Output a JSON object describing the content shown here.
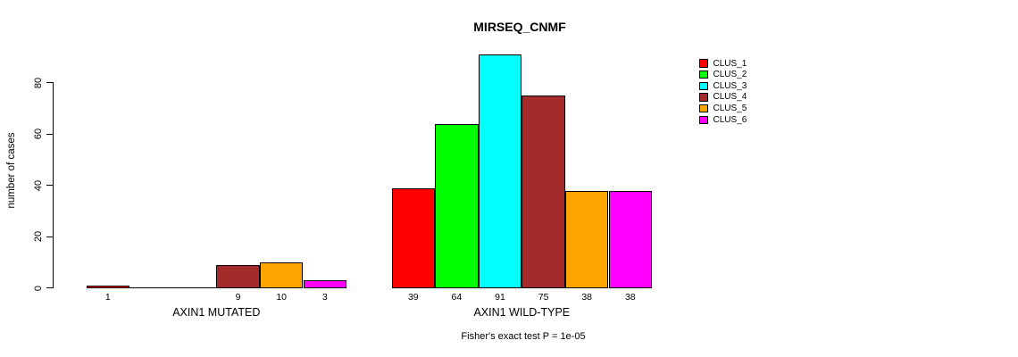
{
  "title": "MIRSEQ_CNMF",
  "y_axis": {
    "label": "number of cases",
    "ticks": [
      0,
      20,
      40,
      60,
      80
    ]
  },
  "footer": "Fisher's exact test P = 1e-05",
  "chart_data": {
    "type": "bar",
    "title": "MIRSEQ_CNMF",
    "ylabel": "number of cases",
    "xlabel": "",
    "ylim": [
      0,
      92
    ],
    "yticks": [
      0,
      20,
      40,
      60,
      80
    ],
    "grid": false,
    "legend_position": "right",
    "categories": [
      "AXIN1 MUTATED",
      "AXIN1 WILD-TYPE"
    ],
    "series": [
      {
        "name": "CLUS_1",
        "color": "#ff0000",
        "values": [
          1,
          39
        ]
      },
      {
        "name": "CLUS_2",
        "color": "#00ff00",
        "values": [
          0,
          64
        ]
      },
      {
        "name": "CLUS_3",
        "color": "#00ffff",
        "values": [
          0,
          91
        ]
      },
      {
        "name": "CLUS_4",
        "color": "#a52a2a",
        "values": [
          9,
          75
        ]
      },
      {
        "name": "CLUS_5",
        "color": "#ffa500",
        "values": [
          10,
          38
        ]
      },
      {
        "name": "CLUS_6",
        "color": "#ff00ff",
        "values": [
          3,
          38
        ]
      }
    ],
    "bar_value_labels": [
      [
        "1",
        "",
        "",
        "9",
        "10",
        "3"
      ],
      [
        "39",
        "64",
        "91",
        "75",
        "38",
        "38"
      ]
    ],
    "annotation": "Fisher's exact test P = 1e-05"
  }
}
